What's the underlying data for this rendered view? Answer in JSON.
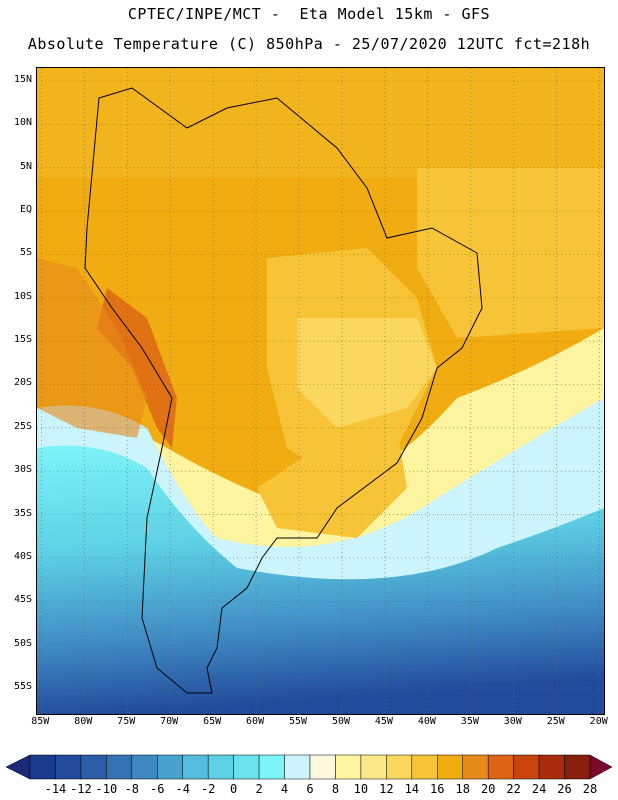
{
  "title": {
    "line1": "CPTEC/INPE/MCT -  Eta Model 15km - GFS",
    "line2": "Absolute Temperature (C) 850hPa - 25/07/2020 12UTC fct=218h"
  },
  "map": {
    "lat_labels": [
      "15N",
      "10N",
      "5N",
      "EQ",
      "5S",
      "10S",
      "15S",
      "20S",
      "25S",
      "30S",
      "35S",
      "40S",
      "45S",
      "50S",
      "55S"
    ],
    "lon_labels": [
      "85W",
      "80W",
      "75W",
      "70W",
      "65W",
      "60W",
      "55W",
      "50W",
      "45W",
      "40W",
      "35W",
      "30W",
      "25W",
      "20W"
    ],
    "lat_values": [
      15,
      10,
      5,
      0,
      -5,
      -10,
      -15,
      -20,
      -25,
      -30,
      -35,
      -40,
      -45,
      -50,
      -55
    ],
    "lon_values": [
      -85,
      -80,
      -75,
      -70,
      -65,
      -60,
      -55,
      -50,
      -45,
      -40,
      -35,
      -30,
      -25,
      -20
    ],
    "extent": {
      "lon_min": -85.5,
      "lon_max": -19.5,
      "lat_min": -58,
      "lat_max": 16.5
    }
  },
  "colorbar": {
    "labels": [
      "-14",
      "-12",
      "-10",
      "-8",
      "-6",
      "-4",
      "-2",
      "0",
      "2",
      "4",
      "6",
      "8",
      "10",
      "12",
      "14",
      "16",
      "18",
      "20",
      "22",
      "24",
      "26",
      "28"
    ],
    "colors": [
      "#1a3a8c",
      "#224a9a",
      "#2a5ca8",
      "#3472b4",
      "#3e88c2",
      "#48a2d0",
      "#54bcdc",
      "#5ed0e4",
      "#6ae2ec",
      "#7ef4f8",
      "#ccf4fc",
      "#fff8e0",
      "#fff4a0",
      "#fce888",
      "#fad860",
      "#f6c436",
      "#f0ac10",
      "#e68a1a",
      "#dc6414",
      "#c8440e",
      "#a82c0c",
      "#86200c"
    ],
    "under_color": "#1a2a78",
    "over_color": "#7a0a2a"
  }
}
